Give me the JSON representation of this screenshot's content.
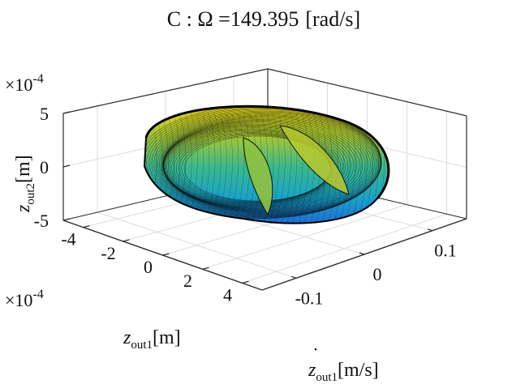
{
  "chart_data": {
    "type": "surface-3d",
    "title_prefix": "C : Ω =",
    "title_value": "149.395",
    "title_unit": "[rad/s]",
    "x_axis": {
      "label_base": "z",
      "label_sub": "out1",
      "label_unit": "[m]",
      "ticks": [
        -4,
        -2,
        0,
        2,
        4
      ],
      "tick_labels": [
        "-4",
        "-2",
        "0",
        "2",
        "4"
      ],
      "exponent_label_base": "×10",
      "exponent_label_power": "-4",
      "range": [
        -5,
        5
      ]
    },
    "y_axis": {
      "label_base": "z",
      "label_sub": "out1",
      "label_unit": "[m/s]",
      "label_dot": "˙",
      "ticks": [
        -0.1,
        0,
        0.1
      ],
      "tick_labels": [
        "-0.1",
        "0",
        "0.1"
      ],
      "range": [
        -0.15,
        0.15
      ]
    },
    "z_axis": {
      "label_base": "z",
      "label_sub": "out2",
      "label_unit": "[m]",
      "ticks": [
        -5,
        0,
        5
      ],
      "tick_labels": [
        "-5",
        "0",
        "5"
      ],
      "exponent_label_base": "×10",
      "exponent_label_power": "-4",
      "range": [
        -5,
        5
      ]
    },
    "grid": true,
    "box": true,
    "colormap": [
      "#1f6fd6",
      "#1aa3c9",
      "#3ab88f",
      "#9cc53b",
      "#e7d51a"
    ],
    "edge_color": "#000000"
  }
}
